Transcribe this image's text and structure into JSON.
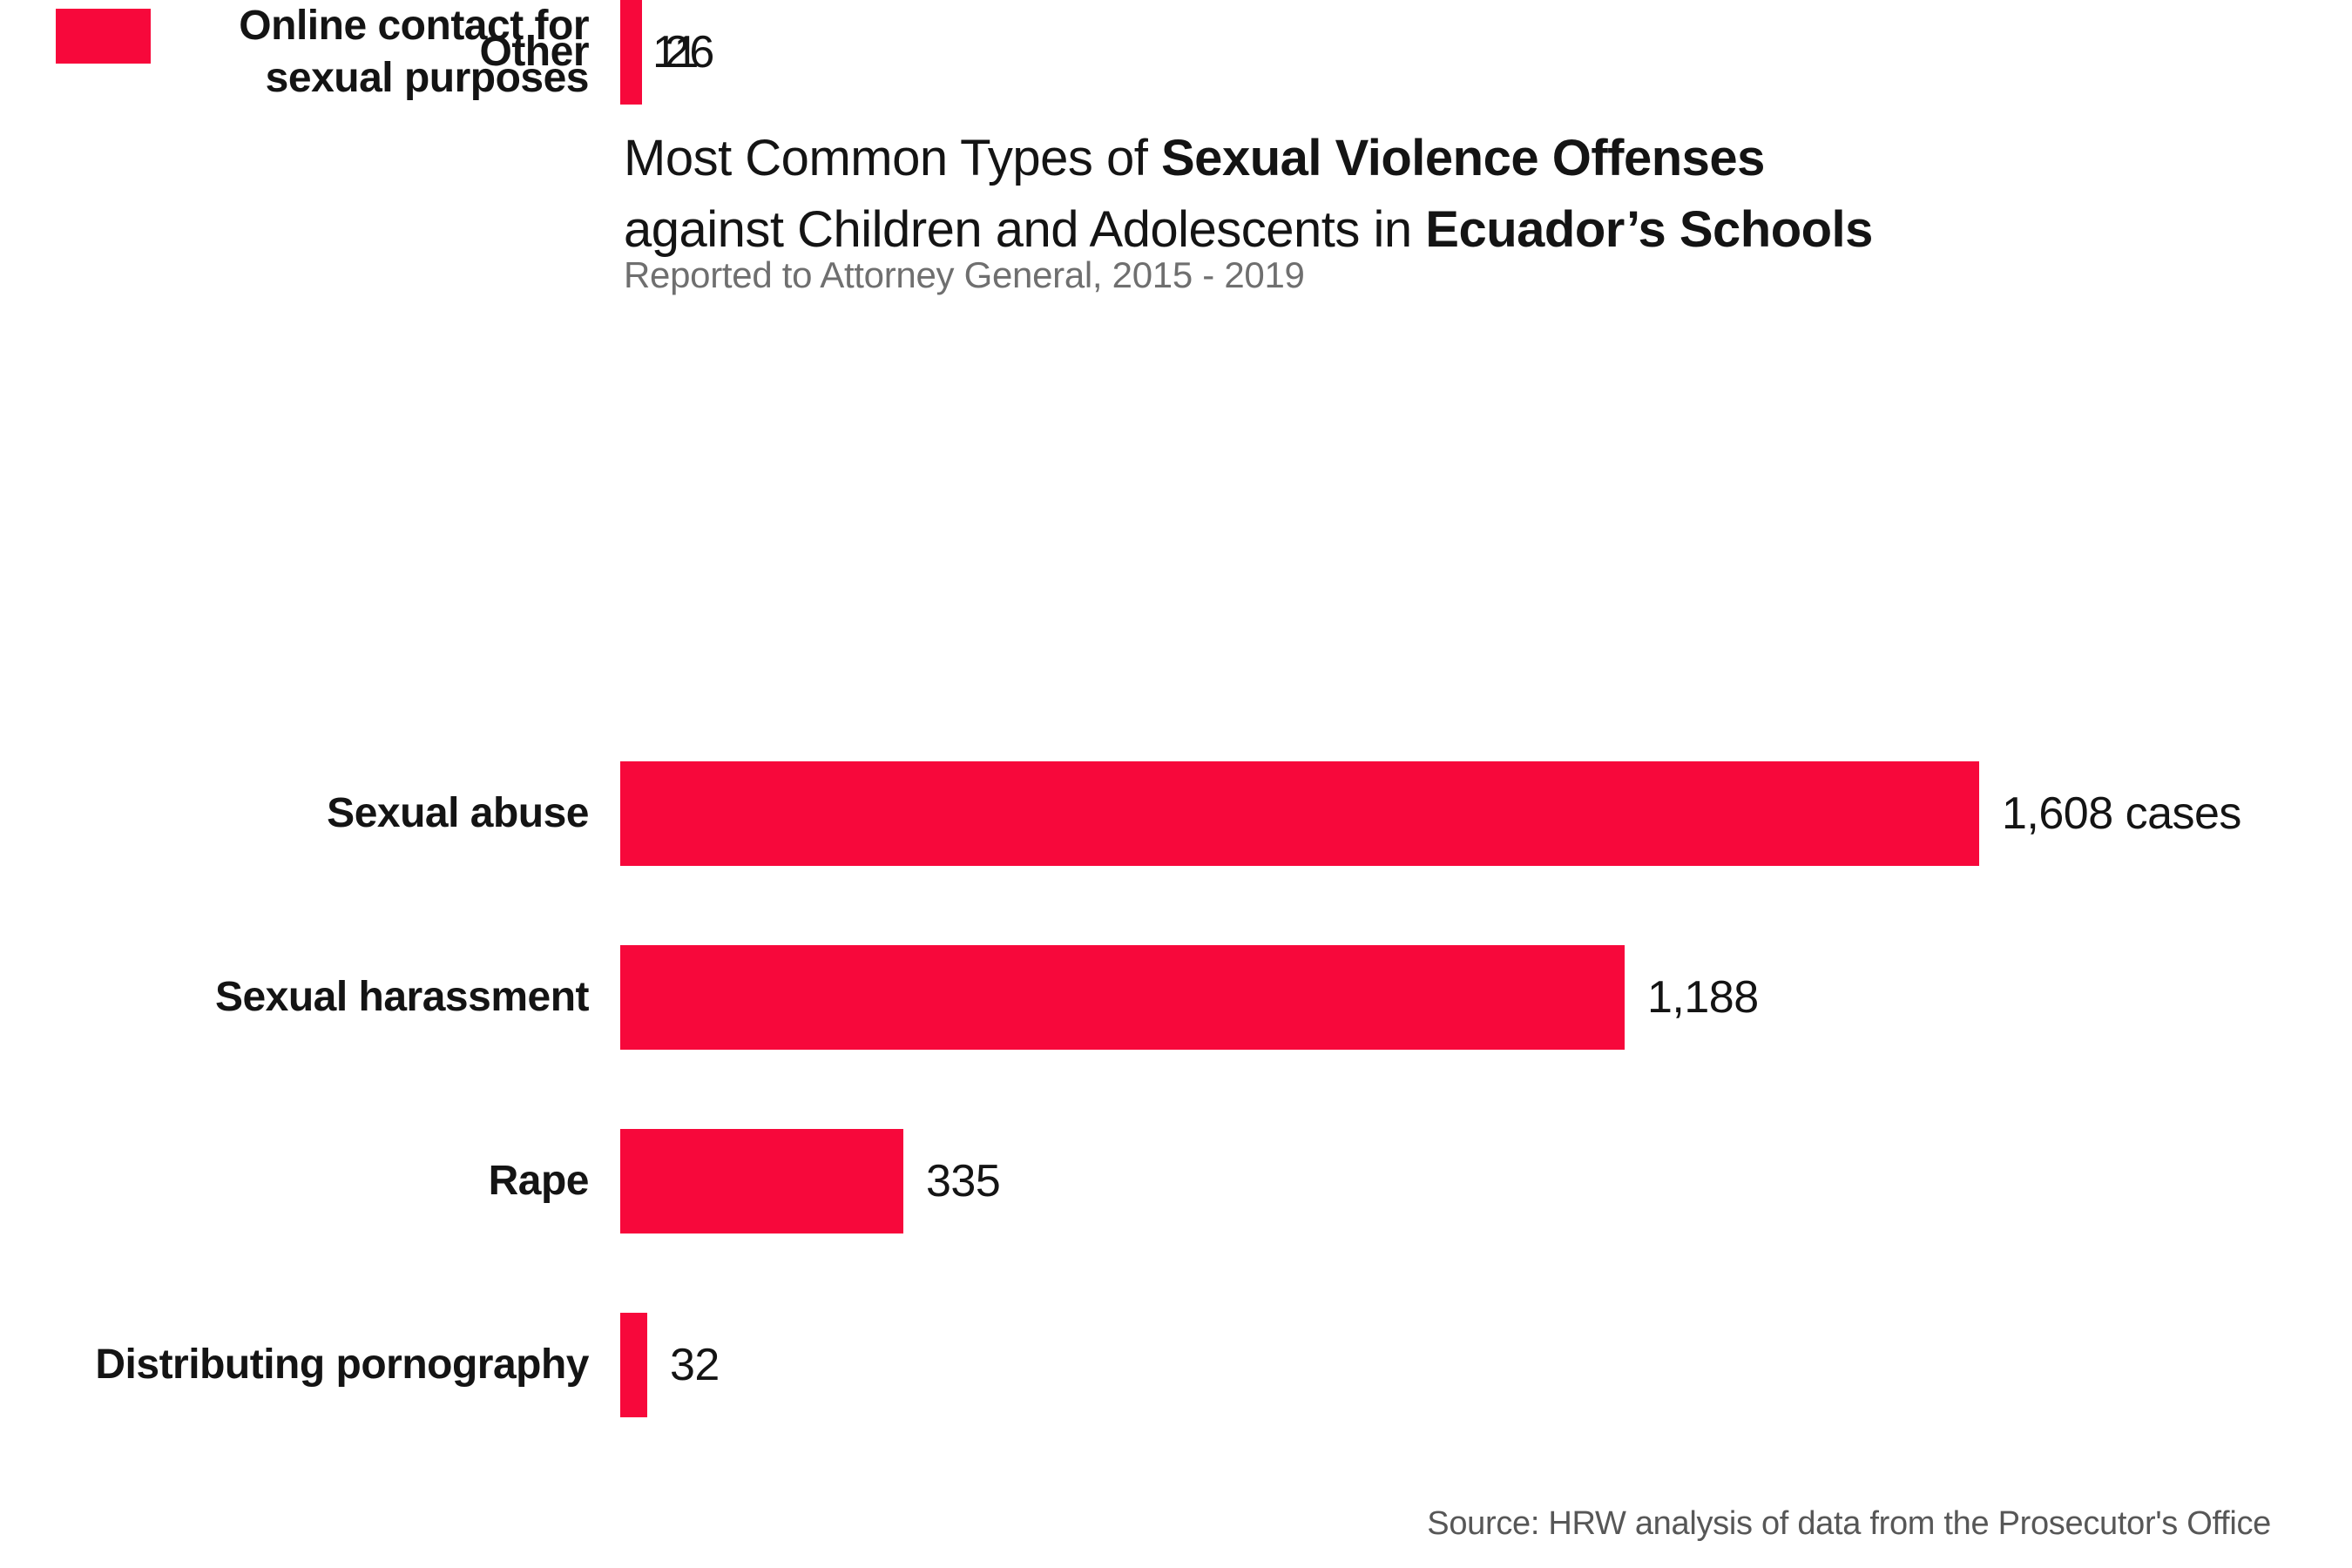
{
  "brand": {
    "mark_color": "#F7083B"
  },
  "title": {
    "regular_1": "Most Common Types of ",
    "bold_1": "Sexual Violence Offenses",
    "regular_2": "against Children and Adolescents in ",
    "bold_2": "Ecuador’s Schools"
  },
  "subtitle": "Reported to Attorney General, 2015 - 2019",
  "source": "Source: HRW analysis of data from the Prosecutor's Office",
  "chart_data": {
    "type": "bar",
    "orientation": "horizontal",
    "title": "Most Common Types of Sexual Violence Offenses against Children and Adolescents in Ecuador’s Schools",
    "subtitle": "Reported to Attorney General, 2015 - 2019",
    "categories": [
      "Sexual abuse",
      "Sexual harassment",
      "Rape",
      "Distributing pornography",
      "Online contact for sexual purposes",
      "Other"
    ],
    "values": [
      1608,
      1188,
      335,
      32,
      26,
      11
    ],
    "value_labels": [
      "1,608 cases",
      "1,188",
      "335",
      "32",
      "26",
      "11"
    ],
    "xlim": [
      0,
      1608
    ],
    "bar_color": "#F7083B",
    "grid": false,
    "legend": false,
    "source": "Source: HRW analysis of data from the Prosecutor's Office",
    "rows": [
      {
        "label": "Sexual abuse",
        "label2": "",
        "value": 1608,
        "value_label": "1,608 cases"
      },
      {
        "label": "Sexual harassment",
        "label2": "",
        "value": 1188,
        "value_label": "1,188"
      },
      {
        "label": "Rape",
        "label2": "",
        "value": 335,
        "value_label": "335"
      },
      {
        "label": "Distributing pornography",
        "label2": "",
        "value": 32,
        "value_label": "32"
      },
      {
        "label": "Online contact for",
        "label2": "sexual purposes",
        "value": 26,
        "value_label": "26"
      },
      {
        "label": "Other",
        "label2": "",
        "value": 11,
        "value_label": "11"
      }
    ]
  }
}
